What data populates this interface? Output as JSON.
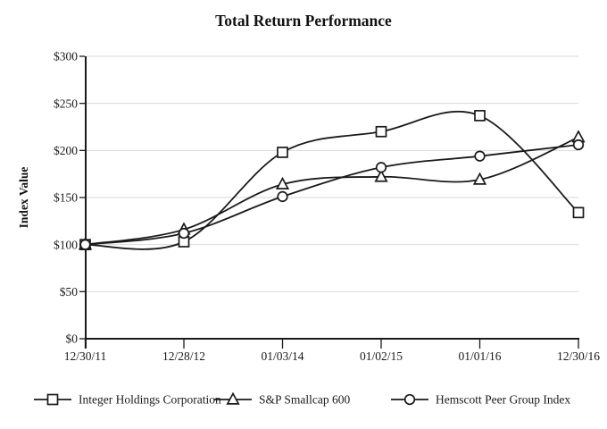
{
  "page": {
    "background": "#ffffff"
  },
  "chart_data": {
    "type": "line",
    "title": "Total Return Performance",
    "xlabel": "",
    "ylabel": "Index Value",
    "categories": [
      "12/30/11",
      "12/28/12",
      "01/03/14",
      "01/02/15",
      "01/01/16",
      "12/30/16"
    ],
    "series": [
      {
        "name": "Integer Holdings Corporation",
        "marker": "square",
        "values": [
          100,
          103,
          198,
          220,
          237,
          134
        ]
      },
      {
        "name": "S&P Smallcap 600",
        "marker": "triangle",
        "values": [
          100,
          116,
          164,
          172,
          169,
          214
        ]
      },
      {
        "name": "Hemscott Peer Group Index",
        "marker": "circle",
        "values": [
          100,
          112,
          151,
          182,
          194,
          206
        ]
      }
    ],
    "ylim": [
      0,
      300
    ],
    "y_tick_step": 50,
    "y_tick_labels": [
      "$0",
      "$50",
      "$100",
      "$150",
      "$200",
      "$250",
      "$300"
    ],
    "grid": "horizontal",
    "legend_position": "bottom",
    "smoothed_lines": true,
    "colors": {
      "line": "#1a1a1a",
      "grid": "#d9d9d9",
      "marker_fill": "#ffffff",
      "background": "#ffffff"
    }
  }
}
